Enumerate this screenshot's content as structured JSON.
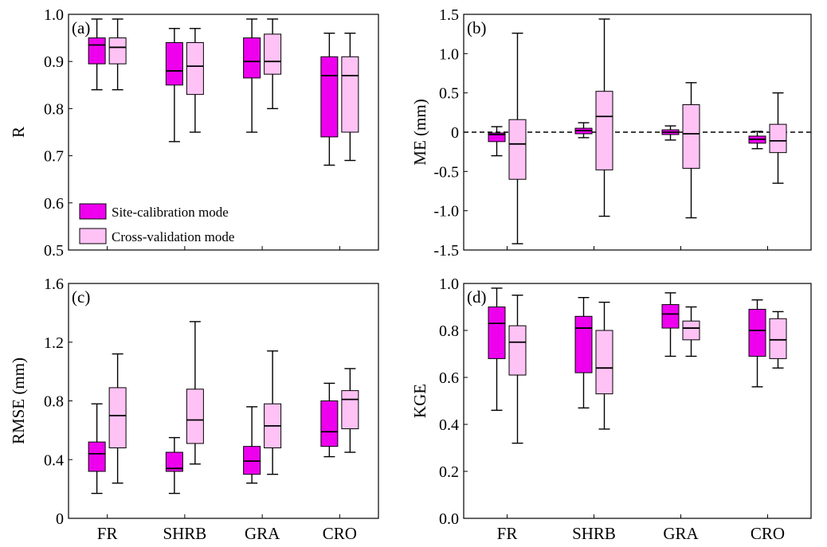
{
  "legend": {
    "items": [
      {
        "label": "Site-calibration mode",
        "color": "#ee00ee"
      },
      {
        "label": "Cross-validation mode",
        "color": "#ffc2f5"
      }
    ]
  },
  "chart_data": [
    {
      "type": "box",
      "panel_label": "(a)",
      "ylabel": "R",
      "ylim": [
        0.5,
        1.0
      ],
      "yticks": [
        "0.5",
        "0.6",
        "0.7",
        "0.8",
        "0.9",
        "1.0"
      ],
      "categories": [
        "FR",
        "SHRB",
        "GRA",
        "CRO"
      ],
      "show_xticklabels": false,
      "zero_line": false,
      "series": [
        {
          "name": "Site-calibration mode",
          "color": "#ee00ee",
          "boxes": [
            {
              "min": 0.84,
              "q1": 0.895,
              "median": 0.935,
              "q3": 0.95,
              "max": 0.99
            },
            {
              "min": 0.73,
              "q1": 0.85,
              "median": 0.88,
              "q3": 0.94,
              "max": 0.97
            },
            {
              "min": 0.75,
              "q1": 0.865,
              "median": 0.9,
              "q3": 0.95,
              "max": 0.99
            },
            {
              "min": 0.68,
              "q1": 0.74,
              "median": 0.87,
              "q3": 0.91,
              "max": 0.96
            }
          ]
        },
        {
          "name": "Cross-validation mode",
          "color": "#ffc2f5",
          "boxes": [
            {
              "min": 0.84,
              "q1": 0.895,
              "median": 0.93,
              "q3": 0.95,
              "max": 0.99
            },
            {
              "min": 0.75,
              "q1": 0.83,
              "median": 0.89,
              "q3": 0.94,
              "max": 0.97
            },
            {
              "min": 0.8,
              "q1": 0.873,
              "median": 0.9,
              "q3": 0.958,
              "max": 0.99
            },
            {
              "min": 0.69,
              "q1": 0.75,
              "median": 0.87,
              "q3": 0.91,
              "max": 0.96
            }
          ]
        }
      ]
    },
    {
      "type": "box",
      "panel_label": "(b)",
      "ylabel": "ME (mm)",
      "ylim": [
        -1.5,
        1.5
      ],
      "yticks": [
        "-1.5",
        "-1.0",
        "-0.5",
        "0",
        "0.5",
        "1.0",
        "1.5"
      ],
      "categories": [
        "FR",
        "SHRB",
        "GRA",
        "CRO"
      ],
      "show_xticklabels": false,
      "zero_line": true,
      "series": [
        {
          "name": "Site-calibration mode",
          "color": "#ee00ee",
          "boxes": [
            {
              "min": -0.3,
              "q1": -0.12,
              "median": -0.03,
              "q3": -0.01,
              "max": 0.07
            },
            {
              "min": -0.07,
              "q1": -0.02,
              "median": 0.02,
              "q3": 0.05,
              "max": 0.12
            },
            {
              "min": -0.1,
              "q1": -0.03,
              "median": 0.0,
              "q3": 0.03,
              "max": 0.08
            },
            {
              "min": -0.21,
              "q1": -0.14,
              "median": -0.09,
              "q3": -0.05,
              "max": 0.01
            }
          ]
        },
        {
          "name": "Cross-validation mode",
          "color": "#ffc2f5",
          "boxes": [
            {
              "min": -1.42,
              "q1": -0.6,
              "median": -0.15,
              "q3": 0.16,
              "max": 1.26
            },
            {
              "min": -1.07,
              "q1": -0.48,
              "median": 0.2,
              "q3": 0.52,
              "max": 1.44
            },
            {
              "min": -1.09,
              "q1": -0.46,
              "median": -0.02,
              "q3": 0.35,
              "max": 0.63
            },
            {
              "min": -0.65,
              "q1": -0.26,
              "median": -0.11,
              "q3": 0.1,
              "max": 0.5
            }
          ]
        }
      ]
    },
    {
      "type": "box",
      "panel_label": "(c)",
      "ylabel": "RMSE (mm)",
      "ylim": [
        0,
        1.6
      ],
      "yticks": [
        "0",
        "0.4",
        "0.8",
        "1.2",
        "1.6"
      ],
      "categories": [
        "FR",
        "SHRB",
        "GRA",
        "CRO"
      ],
      "show_xticklabels": true,
      "zero_line": false,
      "series": [
        {
          "name": "Site-calibration mode",
          "color": "#ee00ee",
          "boxes": [
            {
              "min": 0.17,
              "q1": 0.32,
              "median": 0.44,
              "q3": 0.52,
              "max": 0.78
            },
            {
              "min": 0.17,
              "q1": 0.32,
              "median": 0.34,
              "q3": 0.45,
              "max": 0.55
            },
            {
              "min": 0.24,
              "q1": 0.3,
              "median": 0.39,
              "q3": 0.49,
              "max": 0.76
            },
            {
              "min": 0.42,
              "q1": 0.49,
              "median": 0.59,
              "q3": 0.8,
              "max": 0.92
            }
          ]
        },
        {
          "name": "Cross-validation mode",
          "color": "#ffc2f5",
          "boxes": [
            {
              "min": 0.24,
              "q1": 0.48,
              "median": 0.7,
              "q3": 0.89,
              "max": 1.12
            },
            {
              "min": 0.37,
              "q1": 0.51,
              "median": 0.67,
              "q3": 0.88,
              "max": 1.34
            },
            {
              "min": 0.3,
              "q1": 0.48,
              "median": 0.63,
              "q3": 0.78,
              "max": 1.14
            },
            {
              "min": 0.45,
              "q1": 0.61,
              "median": 0.81,
              "q3": 0.87,
              "max": 1.02
            }
          ]
        }
      ]
    },
    {
      "type": "box",
      "panel_label": "(d)",
      "ylabel": "KGE",
      "ylim": [
        0.0,
        1.0
      ],
      "yticks": [
        "0.0",
        "0.2",
        "0.4",
        "0.6",
        "0.8",
        "1.0"
      ],
      "categories": [
        "FR",
        "SHRB",
        "GRA",
        "CRO"
      ],
      "show_xticklabels": true,
      "zero_line": false,
      "series": [
        {
          "name": "Site-calibration mode",
          "color": "#ee00ee",
          "boxes": [
            {
              "min": 0.46,
              "q1": 0.68,
              "median": 0.83,
              "q3": 0.9,
              "max": 0.98
            },
            {
              "min": 0.47,
              "q1": 0.62,
              "median": 0.81,
              "q3": 0.86,
              "max": 0.94
            },
            {
              "min": 0.69,
              "q1": 0.81,
              "median": 0.87,
              "q3": 0.91,
              "max": 0.96
            },
            {
              "min": 0.56,
              "q1": 0.69,
              "median": 0.8,
              "q3": 0.89,
              "max": 0.93
            }
          ]
        },
        {
          "name": "Cross-validation mode",
          "color": "#ffc2f5",
          "boxes": [
            {
              "min": 0.32,
              "q1": 0.61,
              "median": 0.75,
              "q3": 0.82,
              "max": 0.95
            },
            {
              "min": 0.38,
              "q1": 0.53,
              "median": 0.64,
              "q3": 0.8,
              "max": 0.92
            },
            {
              "min": 0.69,
              "q1": 0.76,
              "median": 0.81,
              "q3": 0.84,
              "max": 0.9
            },
            {
              "min": 0.64,
              "q1": 0.68,
              "median": 0.76,
              "q3": 0.85,
              "max": 0.88
            }
          ]
        }
      ]
    }
  ]
}
